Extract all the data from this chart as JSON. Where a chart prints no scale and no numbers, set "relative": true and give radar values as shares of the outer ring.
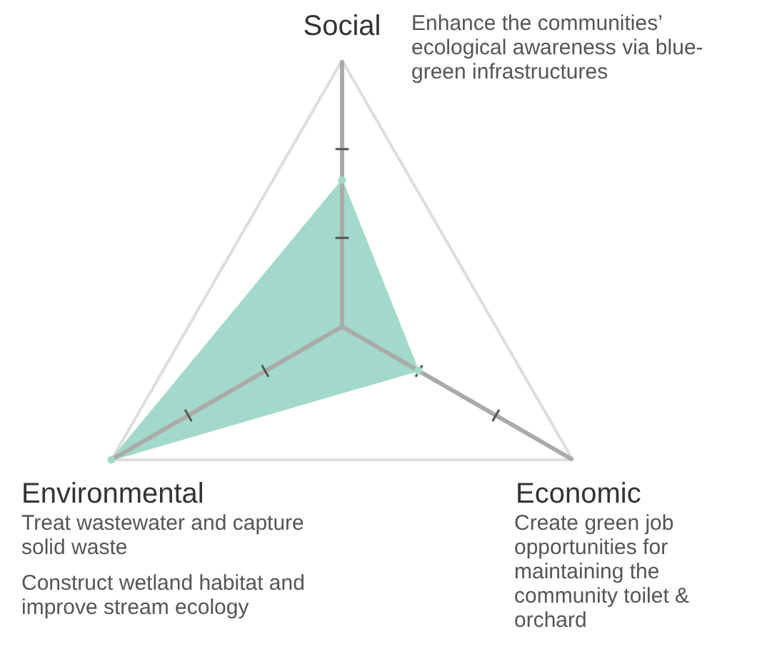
{
  "chart_data": {
    "type": "radar",
    "relative": true,
    "categories": [
      "Social",
      "Economic",
      "Environmental"
    ],
    "series": [
      {
        "color": "#a3d9ca",
        "values": [
          0.55,
          0.33,
          1.0
        ]
      }
    ],
    "annotations": [
      "Enhance the communities’ ecological awareness via blue-green infrastructures",
      "Treat wastewater and capture solid waste",
      "Construct wetland habitat and improve stream ecology",
      "Create green job opportunities for maintaining the community toilet & orchard"
    ]
  }
}
